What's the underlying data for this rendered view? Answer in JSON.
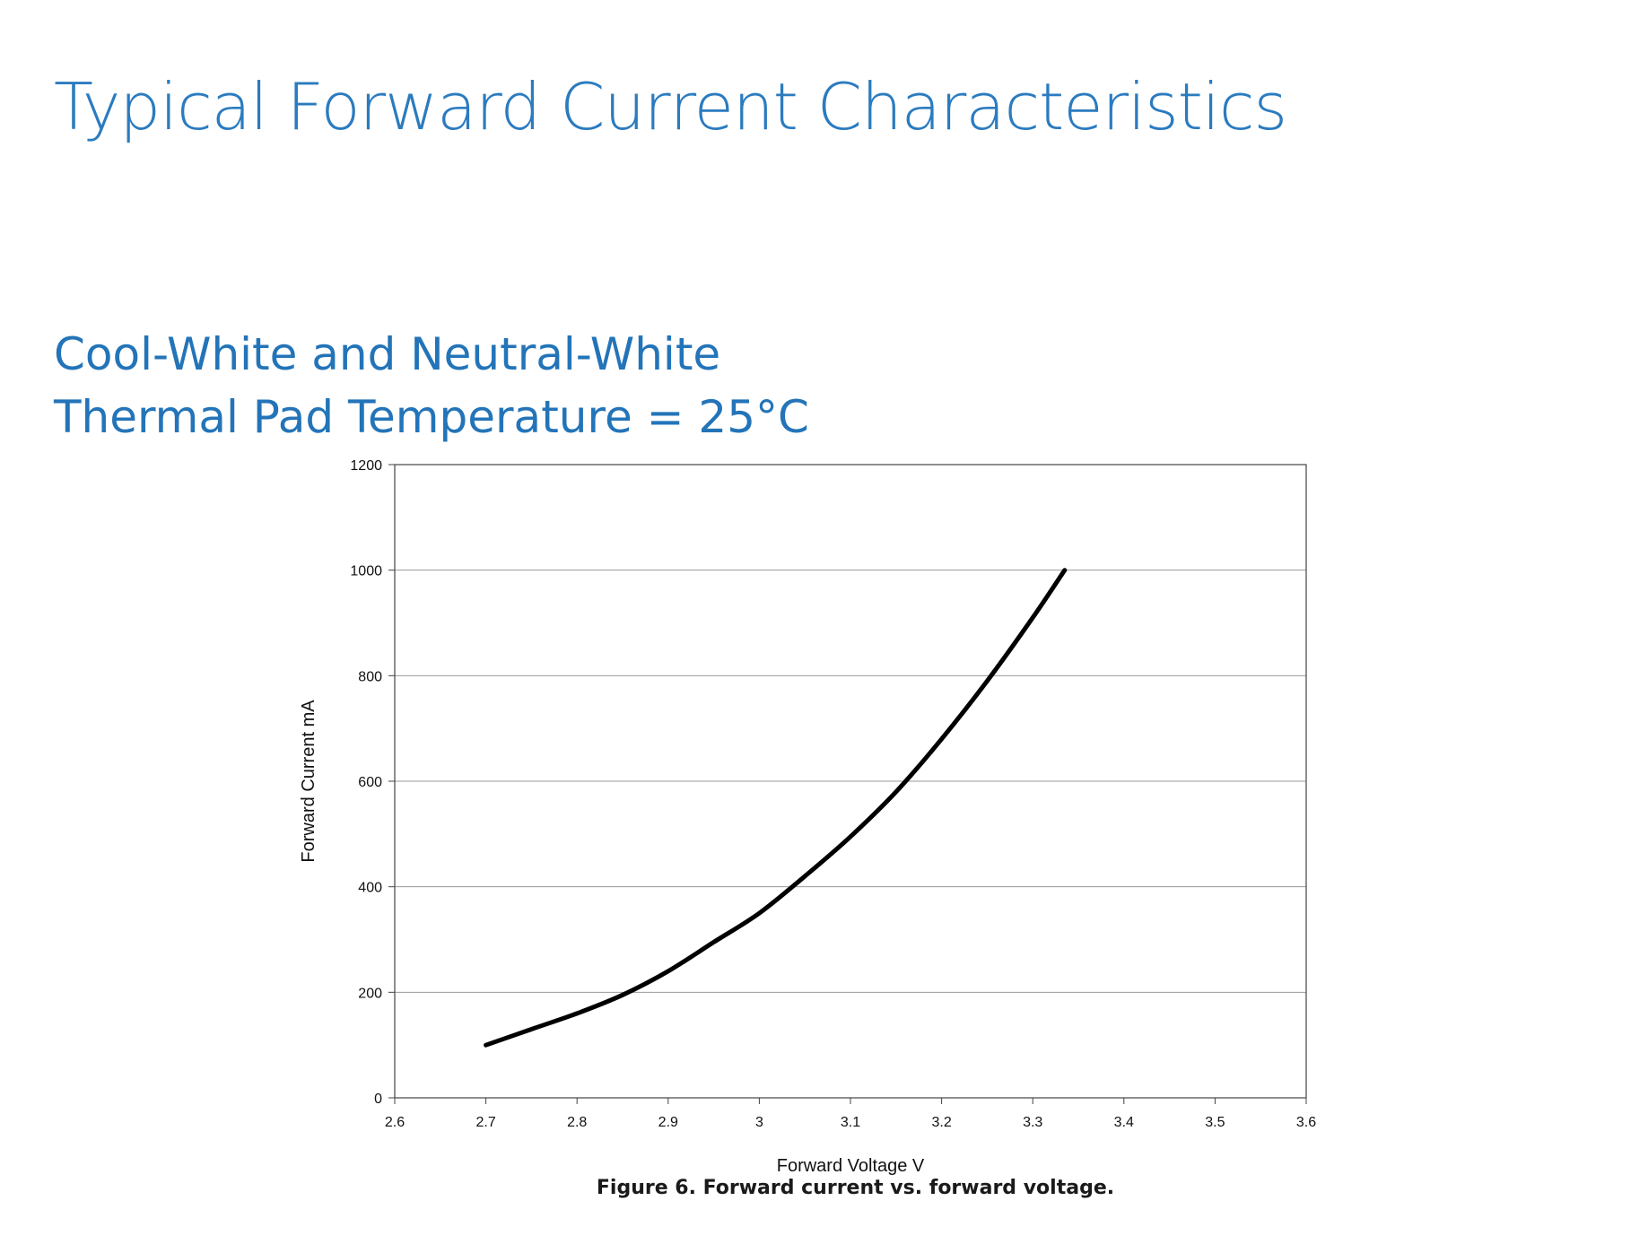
{
  "page": {
    "title": "Typical Forward Current Characteristics",
    "subtitle_line1": "Cool-White and Neutral-White",
    "subtitle_line2": "Thermal Pad Temperature = 25°C",
    "caption": "Figure 6.  Forward current vs. forward voltage."
  },
  "colors": {
    "title": "#2b7bbf",
    "subtitle": "#2374b8",
    "line": "#000000",
    "grid": "#9a9a9a",
    "axis": "#444444"
  },
  "chart_data": {
    "type": "line",
    "title": "",
    "xlabel": "Forward Voltage V",
    "ylabel": "Forward Current mA",
    "xlim": [
      2.6,
      3.6
    ],
    "ylim": [
      0,
      1200
    ],
    "xticks": [
      "2.6",
      "2.7",
      "2.8",
      "2.9",
      "3",
      "3.1",
      "3.2",
      "3.3",
      "3.4",
      "3.5",
      "3.6"
    ],
    "yticks": [
      "0",
      "200",
      "400",
      "600",
      "800",
      "1000",
      "1200"
    ],
    "grid": "horizontal",
    "legend": "none",
    "series": [
      {
        "x": [
          2.7,
          2.75,
          2.8,
          2.85,
          2.9,
          2.95,
          3.0,
          3.05,
          3.1,
          3.15,
          3.2,
          3.25,
          3.3,
          3.335
        ],
        "y": [
          100,
          130,
          160,
          195,
          240,
          295,
          350,
          420,
          495,
          580,
          680,
          790,
          910,
          1000
        ]
      }
    ]
  }
}
